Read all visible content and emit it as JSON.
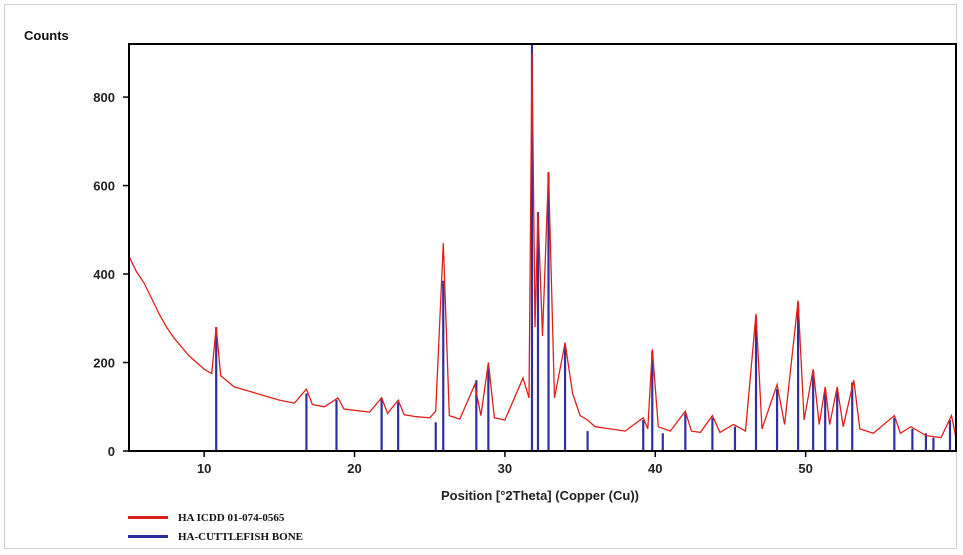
{
  "chart_data": {
    "type": "line",
    "ylabel": "Counts",
    "xlabel": "Position [°2Theta] (Copper (Cu))",
    "xlim": [
      5,
      60
    ],
    "ylim": [
      0,
      920
    ],
    "x_ticks": [
      10,
      20,
      30,
      40,
      50
    ],
    "y_ticks": [
      0,
      200,
      400,
      600,
      800
    ],
    "legend_position": "bottom-left",
    "colors": {
      "red_series": "#e0201b",
      "blue_series": "#2f2fa0"
    },
    "series": [
      {
        "name": "HA ICDD 01-074-0565",
        "kind": "pattern",
        "color": "#e0201b",
        "points": [
          [
            5.0,
            440
          ],
          [
            5.5,
            405
          ],
          [
            6.0,
            380
          ],
          [
            6.5,
            345
          ],
          [
            7.0,
            310
          ],
          [
            7.5,
            280
          ],
          [
            8.0,
            255
          ],
          [
            8.5,
            235
          ],
          [
            9.0,
            215
          ],
          [
            9.5,
            200
          ],
          [
            10.0,
            185
          ],
          [
            10.5,
            175
          ],
          [
            10.8,
            280
          ],
          [
            11.1,
            170
          ],
          [
            12.0,
            145
          ],
          [
            13.0,
            135
          ],
          [
            14.0,
            125
          ],
          [
            15.0,
            115
          ],
          [
            16.0,
            108
          ],
          [
            16.8,
            140
          ],
          [
            17.2,
            105
          ],
          [
            18.0,
            100
          ],
          [
            18.9,
            120
          ],
          [
            19.3,
            95
          ],
          [
            20.0,
            92
          ],
          [
            21.0,
            88
          ],
          [
            21.8,
            120
          ],
          [
            22.2,
            85
          ],
          [
            22.9,
            115
          ],
          [
            23.3,
            82
          ],
          [
            24.0,
            78
          ],
          [
            25.0,
            75
          ],
          [
            25.4,
            90
          ],
          [
            25.9,
            470
          ],
          [
            26.3,
            80
          ],
          [
            27.0,
            72
          ],
          [
            28.0,
            150
          ],
          [
            28.4,
            80
          ],
          [
            28.9,
            200
          ],
          [
            29.3,
            75
          ],
          [
            30.0,
            70
          ],
          [
            31.2,
            165
          ],
          [
            31.6,
            120
          ],
          [
            31.8,
            900
          ],
          [
            32.0,
            280
          ],
          [
            32.2,
            540
          ],
          [
            32.5,
            260
          ],
          [
            32.9,
            630
          ],
          [
            33.3,
            120
          ],
          [
            34.0,
            245
          ],
          [
            34.5,
            130
          ],
          [
            35.0,
            80
          ],
          [
            35.5,
            70
          ],
          [
            36.0,
            55
          ],
          [
            37.0,
            50
          ],
          [
            38.0,
            45
          ],
          [
            39.2,
            75
          ],
          [
            39.5,
            50
          ],
          [
            39.8,
            230
          ],
          [
            40.2,
            55
          ],
          [
            41.0,
            45
          ],
          [
            42.0,
            90
          ],
          [
            42.4,
            45
          ],
          [
            43.0,
            42
          ],
          [
            43.8,
            80
          ],
          [
            44.3,
            42
          ],
          [
            45.2,
            60
          ],
          [
            46.0,
            45
          ],
          [
            46.7,
            310
          ],
          [
            47.1,
            50
          ],
          [
            48.1,
            150
          ],
          [
            48.6,
            60
          ],
          [
            49.5,
            340
          ],
          [
            49.9,
            70
          ],
          [
            50.5,
            185
          ],
          [
            50.9,
            60
          ],
          [
            51.3,
            145
          ],
          [
            51.6,
            60
          ],
          [
            52.1,
            145
          ],
          [
            52.5,
            55
          ],
          [
            53.2,
            160
          ],
          [
            53.6,
            50
          ],
          [
            54.5,
            40
          ],
          [
            55.9,
            80
          ],
          [
            56.3,
            40
          ],
          [
            57.0,
            55
          ],
          [
            58.0,
            35
          ],
          [
            59.0,
            30
          ],
          [
            59.7,
            80
          ],
          [
            60.0,
            30
          ]
        ]
      },
      {
        "name": "HA-CUTTLEFISH BONE",
        "kind": "sticks",
        "color": "#2f2fa0",
        "points": [
          [
            10.8,
            280
          ],
          [
            16.8,
            130
          ],
          [
            18.8,
            115
          ],
          [
            21.8,
            120
          ],
          [
            22.9,
            110
          ],
          [
            25.4,
            65
          ],
          [
            25.9,
            385
          ],
          [
            28.1,
            160
          ],
          [
            28.9,
            190
          ],
          [
            31.8,
            920
          ],
          [
            32.2,
            540
          ],
          [
            32.9,
            630
          ],
          [
            34.0,
            240
          ],
          [
            35.5,
            45
          ],
          [
            39.2,
            70
          ],
          [
            39.8,
            225
          ],
          [
            40.5,
            40
          ],
          [
            42.0,
            85
          ],
          [
            43.8,
            75
          ],
          [
            45.3,
            55
          ],
          [
            46.7,
            305
          ],
          [
            48.1,
            140
          ],
          [
            49.5,
            335
          ],
          [
            50.5,
            180
          ],
          [
            51.3,
            140
          ],
          [
            52.1,
            140
          ],
          [
            53.1,
            155
          ],
          [
            55.9,
            75
          ],
          [
            57.1,
            50
          ],
          [
            58.0,
            40
          ],
          [
            58.5,
            30
          ],
          [
            59.6,
            70
          ]
        ]
      }
    ]
  }
}
